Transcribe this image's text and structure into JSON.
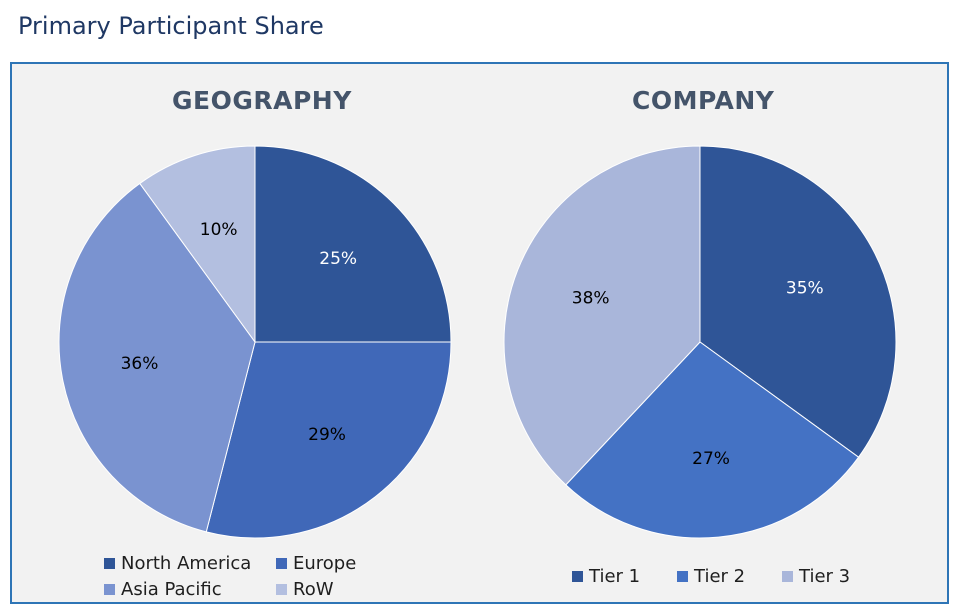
{
  "page": {
    "title": "Primary Participant Share"
  },
  "chart_data": [
    {
      "type": "pie",
      "title": "GEOGRAPHY",
      "categories": [
        "North America",
        "Europe",
        "Asia Pacific",
        "RoW"
      ],
      "values": [
        25,
        29,
        36,
        10
      ],
      "labels": [
        "25%",
        "29%",
        "36%",
        "10%"
      ],
      "colors": [
        "#2f5597",
        "#4068b8",
        "#7a93d0",
        "#b3bfe0"
      ],
      "label_colors": [
        "#ffffff",
        "#000000",
        "#000000",
        "#000000"
      ],
      "legend_position": "bottom"
    },
    {
      "type": "pie",
      "title": "COMPANY",
      "categories": [
        "Tier 1",
        "Tier 2",
        "Tier 3"
      ],
      "values": [
        35,
        27,
        38
      ],
      "labels": [
        "35%",
        "27%",
        "38%"
      ],
      "colors": [
        "#2f5597",
        "#4472c4",
        "#a9b6da"
      ],
      "label_colors": [
        "#ffffff",
        "#000000",
        "#000000"
      ],
      "legend_position": "bottom"
    }
  ]
}
